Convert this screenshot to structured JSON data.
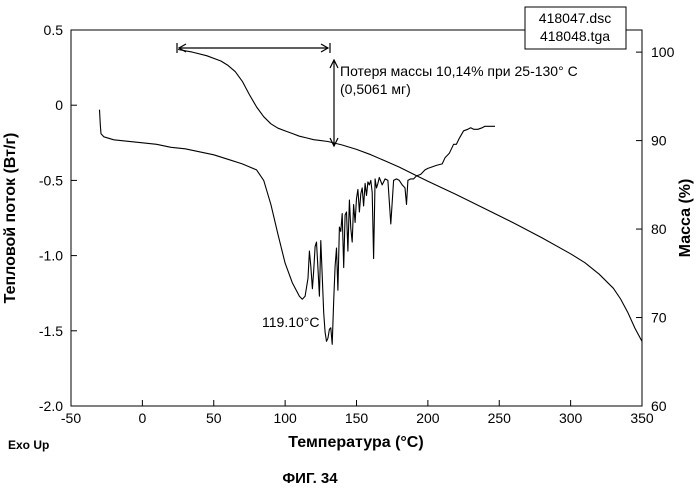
{
  "chart_data": {
    "type": "line",
    "xlabel": "Температура (°C)",
    "ylabel_left": "Тепловой поток (Вт/г)",
    "ylabel_right": "Масса (%)",
    "xlim": [
      -50,
      350
    ],
    "ylim_left": [
      -2.0,
      0.5
    ],
    "ylim_right": [
      60,
      102.5
    ],
    "xticks": [
      "-50",
      "0",
      "50",
      "100",
      "150",
      "200",
      "250",
      "300",
      "350"
    ],
    "yticks_left": [
      "0.5",
      "0",
      "-0.5",
      "-1.0",
      "-1.5",
      "-2.0"
    ],
    "yticks_right": [
      "100",
      "90",
      "80",
      "70",
      "60"
    ],
    "legend_files": [
      "418047.dsc",
      "418048.tga"
    ],
    "annotation_mass_loss": "Потеря массы 10,14% при 25-130° С",
    "annotation_mass_loss_mg": "(0,5061 мг)",
    "annotation_peak": "119.10°C",
    "exo_label": "Exo Up",
    "figure_caption": "ФИГ. 34",
    "series": [
      {
        "name": "418047.dsc",
        "axis": "left",
        "x": [
          -30,
          -29.5,
          -29,
          -27,
          -20,
          -10,
          0,
          10,
          20,
          30,
          40,
          50,
          60,
          70,
          75,
          80,
          85,
          90,
          95,
          100,
          105,
          110,
          112,
          114,
          116,
          117,
          118,
          119.1,
          120,
          121,
          122,
          123,
          124,
          125,
          126,
          127,
          128,
          129,
          130,
          131,
          132,
          133,
          134,
          135,
          136,
          137,
          138,
          139,
          140,
          141,
          142,
          143,
          144,
          145,
          146,
          147,
          148,
          149,
          150,
          151,
          152,
          153,
          154,
          155,
          156,
          157,
          158,
          159,
          160,
          161,
          162,
          163,
          164,
          165,
          166,
          168,
          170,
          172,
          174,
          176,
          178,
          180,
          182,
          184,
          185,
          186,
          188,
          190,
          192,
          195,
          198,
          200,
          203,
          206,
          210,
          212,
          214,
          215,
          218,
          220,
          222,
          225,
          228,
          230,
          232,
          235,
          238,
          240,
          243,
          245,
          247
        ],
        "y": [
          -0.03,
          -0.13,
          -0.19,
          -0.21,
          -0.23,
          -0.24,
          -0.25,
          -0.26,
          -0.28,
          -0.29,
          -0.31,
          -0.33,
          -0.36,
          -0.39,
          -0.41,
          -0.43,
          -0.5,
          -0.66,
          -0.86,
          -1.05,
          -1.18,
          -1.27,
          -1.29,
          -1.27,
          -1.15,
          -0.97,
          -1.07,
          -1.22,
          -1.1,
          -0.94,
          -0.91,
          -1.09,
          -1.27,
          -0.9,
          -1.13,
          -1.38,
          -1.51,
          -1.57,
          -1.55,
          -1.49,
          -1.48,
          -1.59,
          -1.3,
          -1.07,
          -0.95,
          -1.23,
          -0.81,
          -0.84,
          -0.72,
          -1.08,
          -0.73,
          -0.71,
          -0.97,
          -0.63,
          -0.82,
          -0.91,
          -0.66,
          -0.78,
          -0.62,
          -0.56,
          -0.71,
          -0.59,
          -0.55,
          -0.67,
          -0.52,
          -0.6,
          -0.51,
          -0.53,
          -0.5,
          -0.58,
          -1.02,
          -0.49,
          -0.55,
          -0.52,
          -0.48,
          -0.53,
          -0.49,
          -0.5,
          -0.79,
          -0.5,
          -0.49,
          -0.5,
          -0.53,
          -0.55,
          -0.66,
          -0.5,
          -0.49,
          -0.49,
          -0.47,
          -0.46,
          -0.43,
          -0.42,
          -0.41,
          -0.4,
          -0.39,
          -0.35,
          -0.33,
          -0.32,
          -0.26,
          -0.26,
          -0.22,
          -0.17,
          -0.16,
          -0.15,
          -0.16,
          -0.16,
          -0.15,
          -0.14,
          -0.14,
          -0.14,
          -0.14
        ]
      },
      {
        "name": "418048.tga",
        "axis": "right",
        "x": [
          25,
          35,
          45,
          55,
          60,
          65,
          70,
          75,
          80,
          85,
          90,
          95,
          100,
          105,
          110,
          115,
          120,
          125,
          130,
          140,
          150,
          160,
          170,
          180,
          190,
          200,
          220,
          240,
          260,
          280,
          300,
          310,
          320,
          330,
          335,
          340,
          345,
          350
        ],
        "y": [
          100.3,
          100.0,
          99.6,
          99.0,
          98.5,
          97.8,
          96.7,
          95.2,
          93.8,
          92.7,
          91.9,
          91.4,
          91.1,
          90.8,
          90.5,
          90.3,
          90.1,
          90.0,
          89.9,
          89.5,
          89.0,
          88.4,
          87.7,
          87.0,
          86.2,
          85.4,
          83.9,
          82.3,
          80.7,
          79.0,
          77.2,
          76.2,
          74.9,
          73.3,
          72.1,
          70.6,
          68.8,
          67.3
        ]
      }
    ]
  }
}
